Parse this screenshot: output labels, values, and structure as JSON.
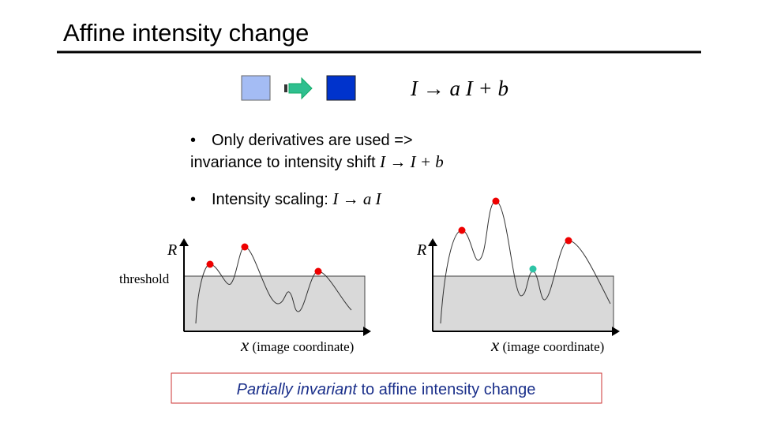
{
  "slide": {
    "title": "Affine intensity change",
    "formula": "I → a I + b",
    "bullets": [
      {
        "text": "Only derivatives are used =>",
        "continuation": "invariance to intensity shift ",
        "math": "I → I + b"
      },
      {
        "text": "Intensity scaling: ",
        "math": "I → a I"
      }
    ],
    "charts": [
      {
        "y_label": "R",
        "threshold_label": "threshold",
        "x_var": "x",
        "x_label": "(image coordinate)"
      },
      {
        "y_label": "R",
        "x_var": "x",
        "x_label": "(image coordinate)"
      }
    ],
    "conclusion": {
      "emphasis": "Partially invariant",
      "text": " to affine intensity change"
    }
  }
}
